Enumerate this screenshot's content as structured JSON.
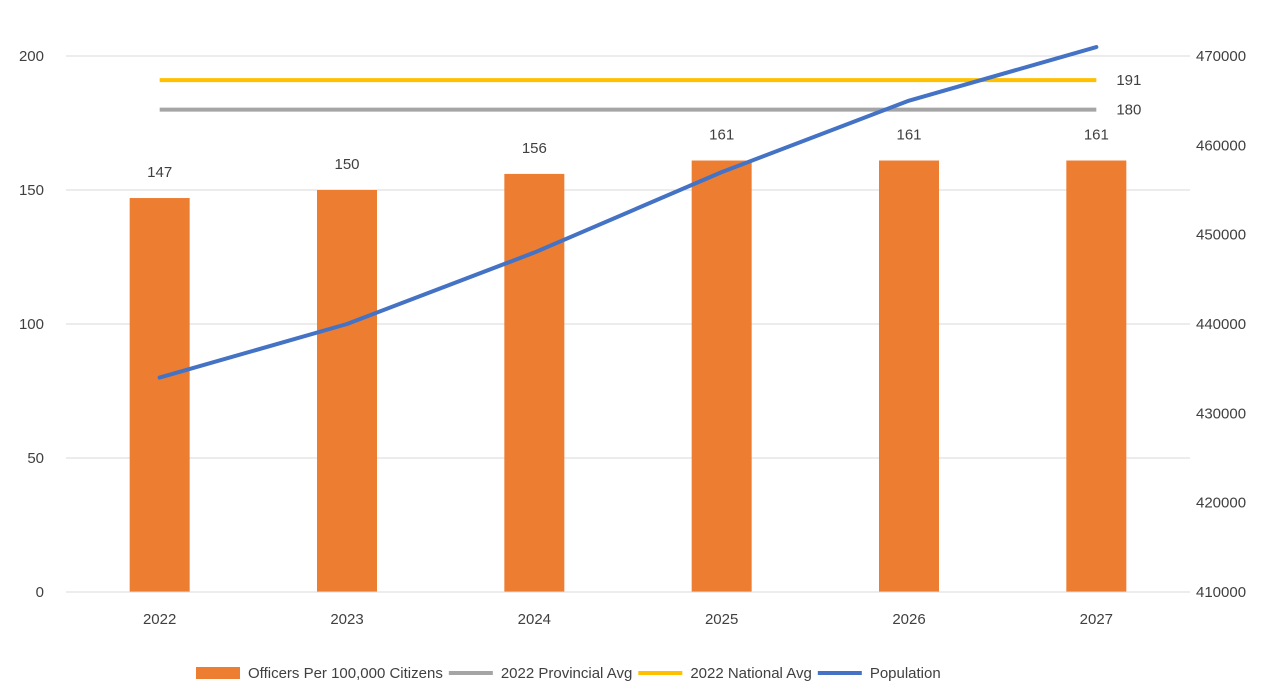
{
  "chart_data": {
    "type": "bar",
    "categories": [
      "2022",
      "2023",
      "2024",
      "2025",
      "2026",
      "2027"
    ],
    "series": [
      {
        "name": "Officers Per 100,000 Citizens",
        "kind": "bar",
        "axis": "left",
        "color": "#ED7D31",
        "values": [
          147,
          150,
          156,
          161,
          161,
          161
        ],
        "data_labels": [
          "147",
          "150",
          "156",
          "161",
          "161",
          "161"
        ]
      },
      {
        "name": "2022 Provincial Avg",
        "kind": "line",
        "axis": "left",
        "color": "#A5A5A5",
        "values": [
          180,
          180,
          180,
          180,
          180,
          180
        ],
        "end_label": "180"
      },
      {
        "name": "2022 National Avg",
        "kind": "line",
        "axis": "left",
        "color": "#FFC000",
        "values": [
          191,
          191,
          191,
          191,
          191,
          191
        ],
        "end_label": "191"
      },
      {
        "name": "Population",
        "kind": "line",
        "axis": "right",
        "color": "#4472C4",
        "values": [
          434000,
          440000,
          448000,
          457000,
          465000,
          471000
        ]
      }
    ],
    "y_left": {
      "ylim": [
        0,
        200
      ],
      "ticks": [
        "0",
        "50",
        "100",
        "150",
        "200"
      ]
    },
    "y_right": {
      "ylim": [
        410000,
        470000
      ],
      "ticks": [
        "410000",
        "420000",
        "430000",
        "440000",
        "450000",
        "460000",
        "470000"
      ]
    },
    "legend_position": "bottom",
    "grid": true
  }
}
